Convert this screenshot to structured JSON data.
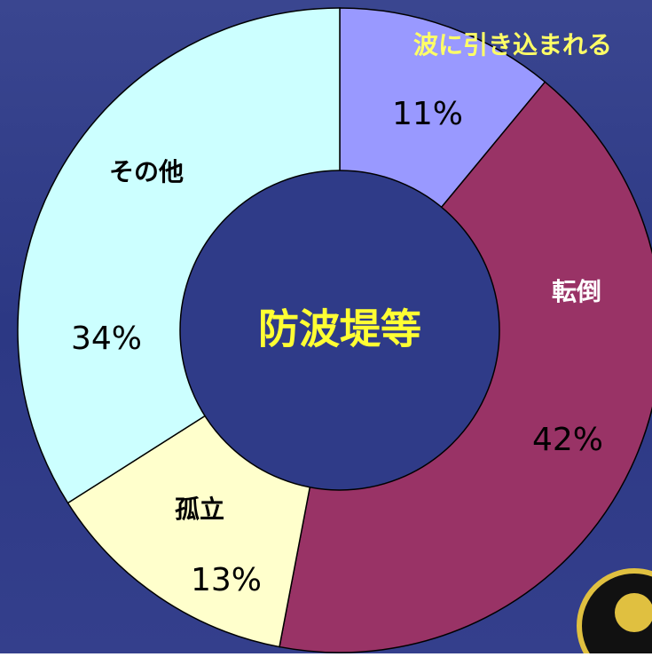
{
  "chart_data": {
    "type": "donut",
    "title": "防波堤等",
    "categories": [
      "波に引き込まれる",
      "転倒",
      "孤立",
      "その他"
    ],
    "values": [
      11,
      42,
      13,
      34
    ],
    "value_labels": [
      "11%",
      "42%",
      "13%",
      "34%"
    ],
    "colors": [
      "#9999ff",
      "#993366",
      "#ffffcc",
      "#ccffff"
    ],
    "label_colors": [
      "#ffff66",
      "#ffffff",
      "#000000",
      "#000000"
    ]
  }
}
